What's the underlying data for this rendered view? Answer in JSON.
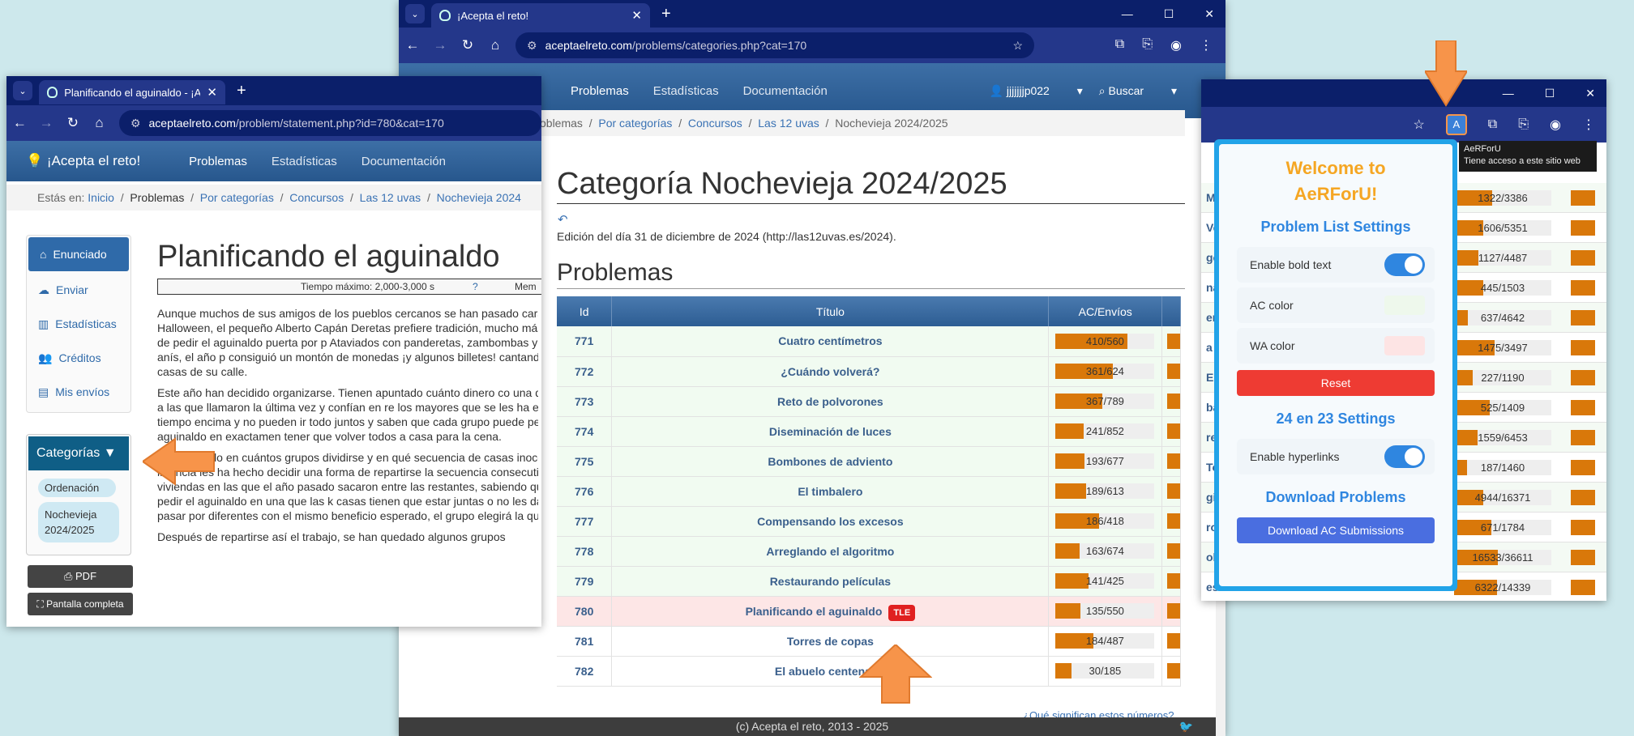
{
  "browser_back": {
    "tab_title": "¡Acepta el reto!",
    "url_domain": "aceptaelreto.com",
    "url_path": "/problems/categories.php?cat=170",
    "site_nav": {
      "problemas": "Problemas",
      "estadisticas": "Estadísticas",
      "documentacion": "Documentación",
      "user": "jjjjjjjp022",
      "buscar": "Buscar"
    },
    "breadcrumb": {
      "problemas": "Problemas",
      "por_categorias": "Por categorías",
      "concursos": "Concursos",
      "las12uvas": "Las 12 uvas",
      "current": "Nochevieja 2024/2025"
    },
    "page_title": "Categoría Nochevieja 2024/2025",
    "edition": "Edición del día 31 de diciembre de 2024 (http://las12uvas.es/2024).",
    "section_title": "Problemas",
    "table": {
      "headers": {
        "id": "Id",
        "titulo": "Título",
        "ac": "AC/Envíos"
      },
      "rows": [
        {
          "id": "771",
          "title": "Cuatro centímetros",
          "ac": "410/560",
          "frac": 0.73,
          "status": "ac"
        },
        {
          "id": "772",
          "title": "¿Cuándo volverá?",
          "ac": "361/624",
          "frac": 0.58,
          "status": "ac"
        },
        {
          "id": "773",
          "title": "Reto de polvorones",
          "ac": "367/789",
          "frac": 0.47,
          "status": "ac"
        },
        {
          "id": "774",
          "title": "Diseminación de luces",
          "ac": "241/852",
          "frac": 0.28,
          "status": "ac"
        },
        {
          "id": "775",
          "title": "Bombones de adviento",
          "ac": "193/677",
          "frac": 0.29,
          "status": "ac"
        },
        {
          "id": "776",
          "title": "El timbalero",
          "ac": "189/613",
          "frac": 0.31,
          "status": "ac"
        },
        {
          "id": "777",
          "title": "Compensando los excesos",
          "ac": "186/418",
          "frac": 0.44,
          "status": "ac"
        },
        {
          "id": "778",
          "title": "Arreglando el algoritmo",
          "ac": "163/674",
          "frac": 0.24,
          "status": "ac"
        },
        {
          "id": "779",
          "title": "Restaurando películas",
          "ac": "141/425",
          "frac": 0.33,
          "status": "ac"
        },
        {
          "id": "780",
          "title": "Planificando el aguinaldo",
          "ac": "135/550",
          "frac": 0.25,
          "status": "wa",
          "badge": "TLE"
        },
        {
          "id": "781",
          "title": "Torres de copas",
          "ac": "184/487",
          "frac": 0.38,
          "status": "wh"
        },
        {
          "id": "782",
          "title": "El abuelo centenario",
          "ac": "30/185",
          "frac": 0.16,
          "status": "wh"
        }
      ]
    },
    "footer": "(c) Acepta el reto, 2013 - 2025",
    "footnote": "¿Qué significan estos números?"
  },
  "browser_left": {
    "tab_title": "Planificando el aguinaldo - ¡Ace",
    "url_domain": "aceptaelreto.com",
    "url_path": "/problem/statement.php?id=780&cat=170",
    "site_nav": {
      "brand": "¡Acepta el reto!",
      "problemas": "Problemas",
      "estadisticas": "Estadísticas",
      "documentacion": "Documentación"
    },
    "breadcrumb": {
      "prefix": "Estás en:",
      "inicio": "Inicio",
      "problemas": "Problemas",
      "por_categorias": "Por categorías",
      "concursos": "Concursos",
      "las12uvas": "Las 12 uvas",
      "current": "Nochevieja 2024"
    },
    "sidebar": {
      "enunciado": "Enunciado",
      "enviar": "Enviar",
      "estadisticas": "Estadísticas",
      "creditos": "Créditos",
      "mis_envios": "Mis envíos",
      "categorias": "Categorías ▼",
      "cat1": "Ordenación",
      "cat2": "Nochevieja 2024/2025",
      "pdf": "PDF",
      "fullscreen": "Pantalla completa"
    },
    "problem_title": "Planificando el aguinaldo",
    "tiempo": "Tiempo máximo: 2,000-3,000 s",
    "mem": "Mem",
    "paragraphs": [
      "Aunque muchos de sus amigos de los pueblos cercanos se han pasado caramelos en Halloween, el pequeño Alberto Capán Deretas prefiere tradición, mucho más española, de pedir el aguinaldo puerta por p Ataviados con panderetas, zambombas y botellas de anís, el año p consiguió un montón de monedas ¡y algunos billetes! cantando villancic las casas de su calle.",
      "Este año han decidido organizarse. Tienen apuntado cuánto dinero co una de las puertas a las que llamaron la última vez y confían en re los mayores que se les ha echado el tiempo encima y no pueden ir todo juntos y saben que cada grupo puede pedir el aguinaldo en exactamen tener que volver todos a casa para la cena.",
      "Están viendo en cuántos grupos dividirse y en qué secuencia de casas inocencia de la infancia les ha hecho decidir una forma de repartirse la secuencia consecutiva de k viviendas en las que el año pasado sacaron entre las restantes, sabiendo que no pueden pedir el aguinaldo en una que las k casas tienen que estar juntas o no les dará tiempo a pasar por diferentes con el mismo beneficio esperado, el grupo elegirá la que está",
      "Después de repartirse así el trabajo, se han quedado algunos grupos"
    ]
  },
  "browser_right": {
    "tooltip_title": "AeRForU",
    "tooltip_sub": "Tiene acceso a este sitio web",
    "bg_rows": [
      {
        "label": "Mo",
        "ac": "1322/3386",
        "frac": 0.39
      },
      {
        "label": "Ve",
        "ac": "1606/5351",
        "frac": 0.3
      },
      {
        "label": "gos",
        "ac": "1127/4487",
        "frac": 0.25
      },
      {
        "label": "na",
        "ac": "445/1503",
        "frac": 0.3
      },
      {
        "label": "en",
        "ac": "637/4642",
        "frac": 0.14
      },
      {
        "label": "a c",
        "ac": "1475/3497",
        "frac": 0.42
      },
      {
        "label": "Es",
        "ac": "227/1190",
        "frac": 0.19
      },
      {
        "label": "ba",
        "ac": "525/1409",
        "frac": 0.37
      },
      {
        "label": "re",
        "ac": "1559/6453",
        "frac": 0.24
      },
      {
        "label": "To",
        "ac": "187/1460",
        "frac": 0.13
      },
      {
        "label": "gi",
        "ac": "4944/16371",
        "frac": 0.3
      },
      {
        "label": "ro",
        "ac": "671/1784",
        "frac": 0.38
      },
      {
        "label": "ola",
        "ac": "16533/36611",
        "frac": 0.45
      },
      {
        "label": "est",
        "ac": "6322/14339",
        "frac": 0.44
      }
    ]
  },
  "popup": {
    "title": "Welcome to AeRForU!",
    "problem_list_settings": "Problem List Settings",
    "enable_bold": "Enable bold text",
    "ac_color": "AC color",
    "wa_color": "WA color",
    "reset": "Reset",
    "settings_24": "24 en 23 Settings",
    "enable_hyperlinks": "Enable hyperlinks",
    "download_problems": "Download Problems",
    "download_ac": "Download AC Submissions",
    "colors": {
      "ac": "#eef8ec",
      "wa": "#fde4e4",
      "reset": "#ee3b33",
      "download": "#4a6ee0",
      "title": "#f5a623",
      "accent": "#2f86e0"
    }
  },
  "arrow_color": "#f7944a"
}
